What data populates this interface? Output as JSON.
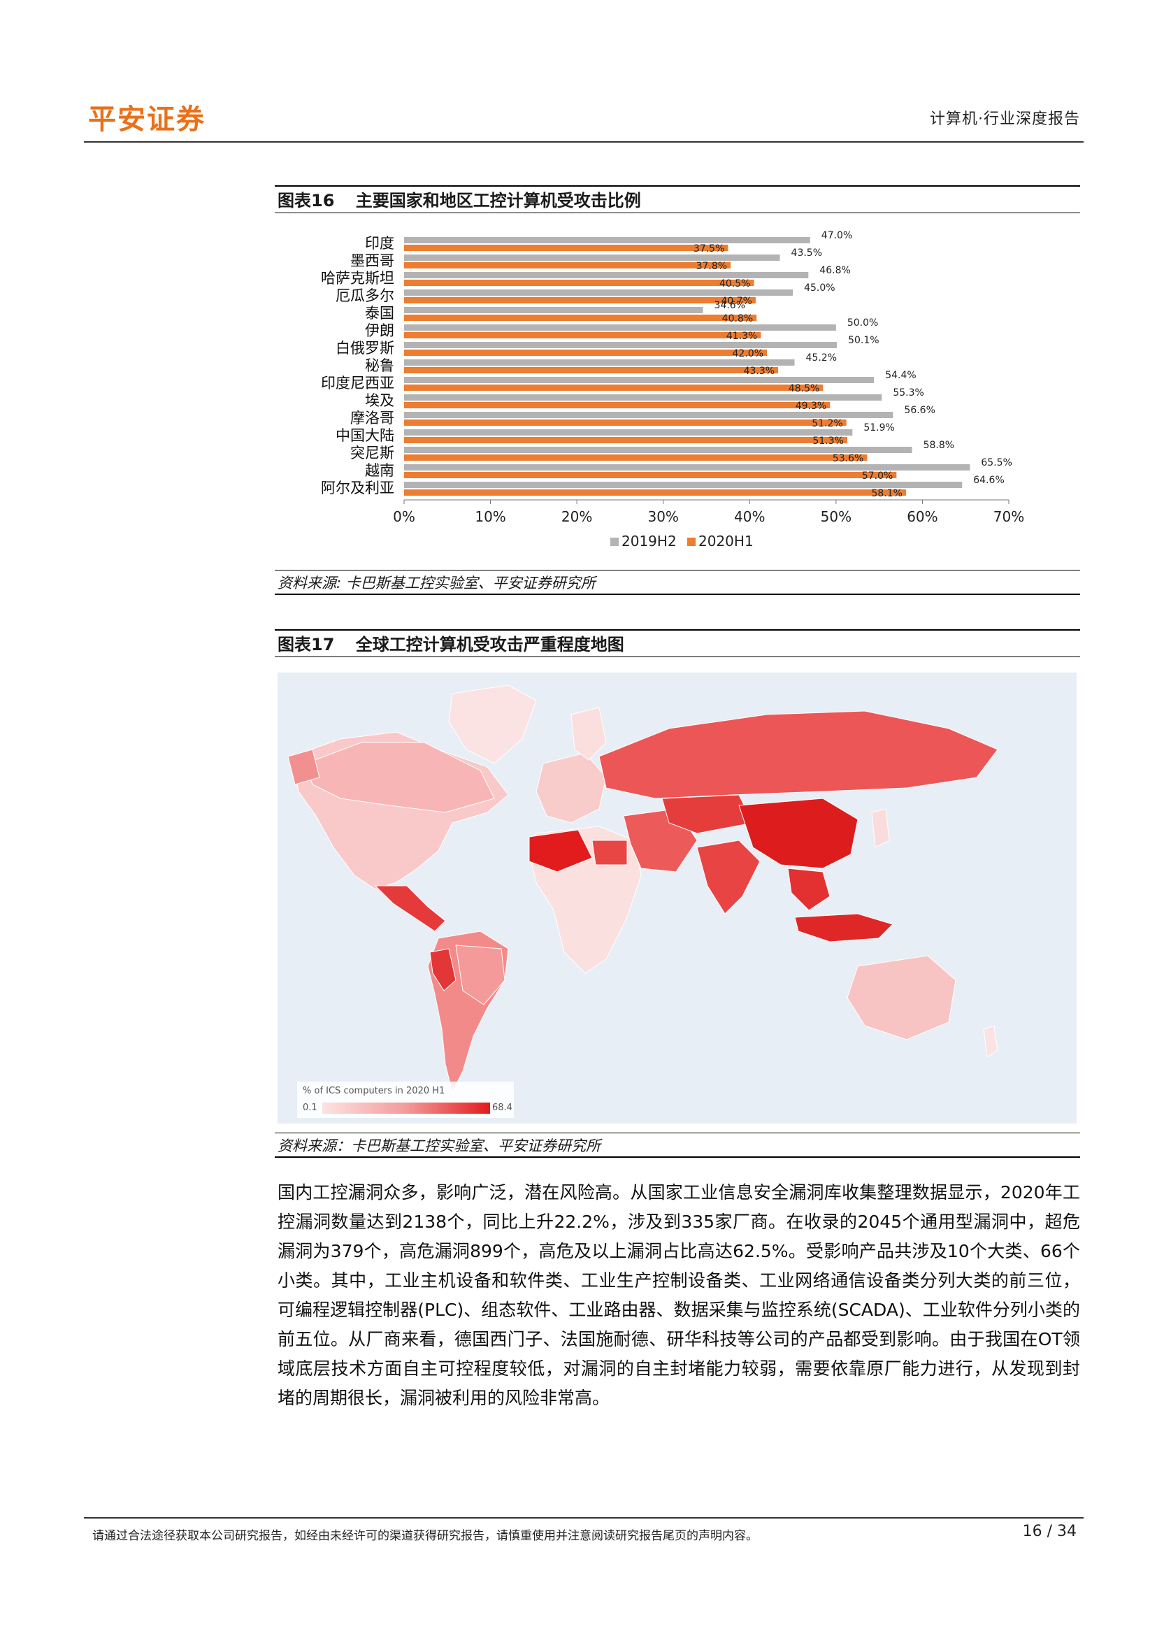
{
  "header": {
    "brand": "平安证券",
    "report_type": "计算机·行业深度报告"
  },
  "figure16": {
    "label": "图表16",
    "title": "主要国家和地区工控计算机受攻击比例",
    "source": "资料来源: 卡巴斯基工控实验室、平安证券研究所"
  },
  "figure17": {
    "label": "图表17",
    "title": "全球工控计算机受攻击严重程度地图",
    "source": "资料来源：卡巴斯基工控实验室、平安证券研究所",
    "legend": {
      "title": "% of ICS computers in 2020 H1",
      "min": "0.1",
      "max": "68.4"
    }
  },
  "chart_data": {
    "type": "bar",
    "orientation": "horizontal",
    "categories": [
      "印度",
      "墨西哥",
      "哈萨克斯坦",
      "厄瓜多尔",
      "泰国",
      "伊朗",
      "白俄罗斯",
      "秘鲁",
      "印度尼西亚",
      "埃及",
      "摩洛哥",
      "中国大陆",
      "突尼斯",
      "越南",
      "阿尔及利亚"
    ],
    "series": [
      {
        "name": "2019H2",
        "color": "#b3b3b3",
        "values": [
          47.0,
          43.5,
          46.8,
          45.0,
          34.6,
          50.0,
          50.1,
          45.2,
          54.4,
          55.3,
          56.6,
          51.9,
          58.8,
          65.5,
          64.6
        ]
      },
      {
        "name": "2020H1",
        "color": "#ed7d31",
        "values": [
          37.5,
          37.8,
          40.5,
          40.7,
          40.8,
          41.3,
          42.0,
          43.3,
          48.5,
          49.3,
          51.2,
          51.3,
          53.6,
          57.0,
          58.1
        ]
      }
    ],
    "xlim": [
      0,
      70
    ],
    "xticks": [
      "0%",
      "10%",
      "20%",
      "30%",
      "40%",
      "50%",
      "60%",
      "70%"
    ],
    "legend_position": "bottom",
    "grid": false
  },
  "body_text": "国内工控漏洞众多，影响广泛，潜在风险高。从国家工业信息安全漏洞库收集整理数据显示，2020年工控漏洞数量达到2138个，同比上升22.2%，涉及到335家厂商。在收录的2045个通用型漏洞中，超危漏洞为379个，高危漏洞899个，高危及以上漏洞占比高达62.5%。受影响产品共涉及10个大类、66个小类。其中，工业主机设备和软件类、工业生产控制设备类、工业网络通信设备类分列大类的前三位，可编程逻辑控制器(PLC)、组态软件、工业路由器、数据采集与监控系统(SCADA)、工业软件分列小类的前五位。从厂商来看，德国西门子、法国施耐德、研华科技等公司的产品都受到影响。由于我国在OT领域底层技术方面自主可控程度较低，对漏洞的自主封堵能力较弱，需要依靠原厂能力进行，从发现到封堵的周期很长，漏洞被利用的风险非常高。",
  "footer": {
    "disclaimer": "请通过合法途径获取本公司研究报告，如经由未经许可的渠道获得研究报告，请慎重使用并注意阅读研究报告尾页的声明内容。",
    "page": "16 / 34"
  }
}
